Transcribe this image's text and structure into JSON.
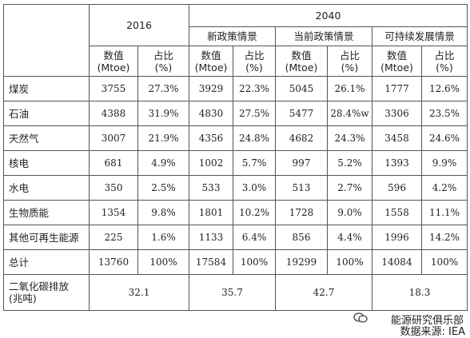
{
  "header": {
    "year_base": "2016",
    "year_future": "2040",
    "scenarios": [
      "新政策情景",
      "当前政策情景",
      "可持续发展情景"
    ],
    "value_label": [
      "数值",
      "(Mtoe)"
    ],
    "share_label": [
      "占比",
      "(%)"
    ]
  },
  "rows": [
    {
      "label": "煤炭",
      "cells": [
        "3755",
        "27.3%",
        "3929",
        "22.3%",
        "5045",
        "26.1%",
        "1777",
        "12.6%"
      ]
    },
    {
      "label": "石油",
      "cells": [
        "4388",
        "31.9%",
        "4830",
        "27.5%",
        "5477",
        "28.4%w",
        "3306",
        "23.5%"
      ]
    },
    {
      "label": "天然气",
      "cells": [
        "3007",
        "21.9%",
        "4356",
        "24.8%",
        "4682",
        "24.3%",
        "3458",
        "24.6%"
      ]
    },
    {
      "label": "核电",
      "cells": [
        "681",
        "4.9%",
        "1002",
        "5.7%",
        "997",
        "5.2%",
        "1393",
        "9.9%"
      ]
    },
    {
      "label": "水电",
      "cells": [
        "350",
        "2.5%",
        "533",
        "3.0%",
        "513",
        "2.7%",
        "596",
        "4.2%"
      ]
    },
    {
      "label": "生物质能",
      "cells": [
        "1354",
        "9.8%",
        "1801",
        "10.2%",
        "1728",
        "9.0%",
        "1558",
        "11.1%"
      ]
    },
    {
      "label": "其他可再生能源",
      "cells": [
        "225",
        "1.6%",
        "1133",
        "6.4%",
        "856",
        "4.4%",
        "1996",
        "14.2%"
      ]
    },
    {
      "label": "总计",
      "cells": [
        "13760",
        "100%",
        "17584",
        "100%",
        "19299",
        "100%",
        "14084",
        "100%"
      ]
    }
  ],
  "emission": {
    "label": [
      "二氧化碳排放",
      "(兆吨)"
    ],
    "values": [
      "32.1",
      "35.7",
      "42.7",
      "18.3"
    ]
  },
  "footer": {
    "brand": "能源研究俱乐部",
    "source": "数据来源: IEA"
  }
}
